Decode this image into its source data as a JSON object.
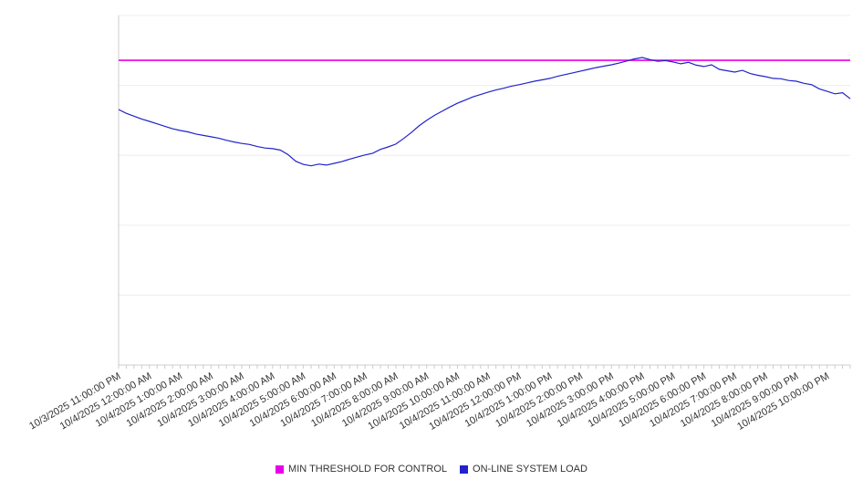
{
  "chart_data": {
    "type": "line",
    "title": "",
    "xlabel": "",
    "ylabel": "",
    "ylim": [
      0,
      100
    ],
    "gridline_values": [
      0,
      20,
      40,
      60,
      80,
      100
    ],
    "grid": "horizontal",
    "legend_position": "bottom",
    "samples_per_label": 4,
    "x_labels": [
      "10/3/2025 11:00:00 PM",
      "10/4/2025 12:00:00 AM",
      "10/4/2025 1:00:00 AM",
      "10/4/2025 2:00:00 AM",
      "10/4/2025 3:00:00 AM",
      "10/4/2025 4:00:00 AM",
      "10/4/2025 5:00:00 AM",
      "10/4/2025 6:00:00 AM",
      "10/4/2025 7:00:00 AM",
      "10/4/2025 8:00:00 AM",
      "10/4/2025 9:00:00 AM",
      "10/4/2025 10:00:00 AM",
      "10/4/2025 11:00:00 AM",
      "10/4/2025 12:00:00 PM",
      "10/4/2025 1:00:00 PM",
      "10/4/2025 2:00:00 PM",
      "10/4/2025 3:00:00 PM",
      "10/4/2025 4:00:00 PM",
      "10/4/2025 5:00:00 PM",
      "10/4/2025 6:00:00 PM",
      "10/4/2025 7:00:00 PM",
      "10/4/2025 8:00:00 PM",
      "10/4/2025 9:00:00 PM",
      "10/4/2025 10:00:00 PM"
    ],
    "series": [
      {
        "name": "MIN THRESHOLD FOR CONTROL",
        "type": "threshold",
        "color": "#e800e8",
        "value": 87.2
      },
      {
        "name": "ON-LINE SYSTEM LOAD",
        "type": "line",
        "color": "#2222cc",
        "values": [
          73.1,
          72.0,
          71.2,
          70.4,
          69.7,
          69.0,
          68.3,
          67.6,
          67.1,
          66.7,
          66.1,
          65.7,
          65.3,
          64.9,
          64.3,
          63.8,
          63.4,
          63.1,
          62.5,
          62.1,
          61.9,
          61.5,
          60.2,
          58.3,
          57.4,
          57.0,
          57.5,
          57.2,
          57.7,
          58.2,
          58.9,
          59.5,
          60.1,
          60.6,
          61.7,
          62.4,
          63.2,
          64.8,
          66.5,
          68.4,
          70.0,
          71.4,
          72.6,
          73.8,
          74.9,
          75.8,
          76.7,
          77.4,
          78.1,
          78.7,
          79.2,
          79.8,
          80.2,
          80.7,
          81.2,
          81.6,
          82.0,
          82.6,
          83.1,
          83.6,
          84.1,
          84.6,
          85.1,
          85.5,
          85.9,
          86.4,
          87.0,
          87.6,
          88.0,
          87.4,
          86.9,
          87.1,
          86.7,
          86.2,
          86.6,
          85.8,
          85.4,
          85.9,
          84.6,
          84.2,
          83.8,
          84.3,
          83.4,
          82.9,
          82.5,
          82.0,
          81.9,
          81.4,
          81.2,
          80.6,
          80.2,
          79.0,
          78.3,
          77.6,
          77.9,
          76.2
        ]
      }
    ],
    "colors": {
      "gridline": "#ededed",
      "axis": "#cccccc",
      "tick": "#cccccc",
      "label_text": "#333333",
      "background": "#ffffff"
    }
  }
}
